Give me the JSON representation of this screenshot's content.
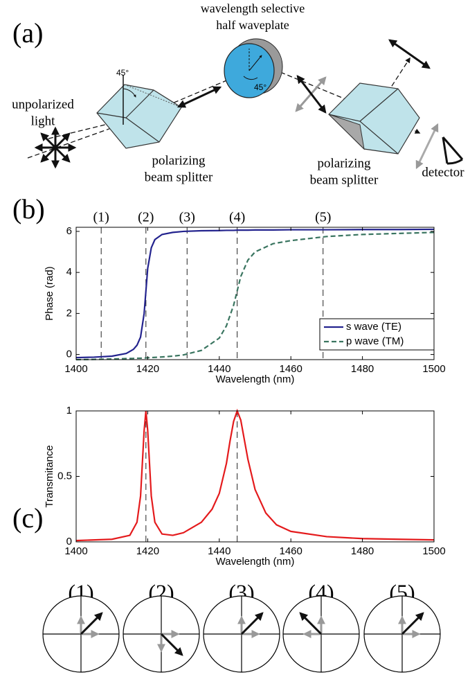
{
  "panels": [
    "(a)",
    "(b)",
    "(c)"
  ],
  "diagram": {
    "waveplate_label": [
      "wavelength selective",
      "half waveplate"
    ],
    "source_label": [
      "unpolarized",
      "light"
    ],
    "splitter_labels": [
      [
        "polarizing",
        "beam splitter"
      ],
      [
        "polarizing",
        "beam splitter"
      ]
    ],
    "angle_labels": [
      "45°",
      "45°"
    ],
    "detector_label": "detector"
  },
  "polarization_states": [
    "(1)",
    "(2)",
    "(3)",
    "(4)",
    "(5)"
  ],
  "chart_data": [
    {
      "type": "line",
      "xlabel": "Wavelength (nm)",
      "ylabel": "Phase (rad)",
      "x": [
        1400,
        1405,
        1410,
        1414,
        1416,
        1417,
        1418,
        1419,
        1419.5,
        1420,
        1421,
        1422,
        1424,
        1427,
        1430,
        1435,
        1440,
        1442,
        1444,
        1445,
        1446,
        1448,
        1450,
        1455,
        1460,
        1470,
        1480,
        1490,
        1500
      ],
      "series": [
        {
          "name": "s wave (TE)",
          "color": "#23238e",
          "style": "solid",
          "values": [
            -0.15,
            -0.13,
            -0.08,
            0.05,
            0.25,
            0.45,
            0.85,
            2.0,
            3.1,
            4.2,
            5.2,
            5.6,
            5.85,
            5.95,
            6.0,
            6.03,
            6.04,
            6.05,
            6.05,
            6.06,
            6.06,
            6.06,
            6.07,
            6.07,
            6.08,
            6.08,
            6.09,
            6.09,
            6.1
          ]
        },
        {
          "name": "p wave (TM)",
          "color": "#3a7560",
          "style": "dashed",
          "values": [
            -0.25,
            -0.24,
            -0.22,
            -0.2,
            -0.19,
            -0.18,
            -0.18,
            -0.17,
            -0.17,
            -0.16,
            -0.15,
            -0.14,
            -0.12,
            -0.08,
            -0.02,
            0.2,
            0.8,
            1.4,
            2.4,
            3.1,
            3.8,
            4.6,
            5.0,
            5.4,
            5.55,
            5.75,
            5.85,
            5.9,
            5.95
          ]
        }
      ],
      "xlim": [
        1400,
        1500
      ],
      "ylim": [
        -0.25,
        6.2
      ],
      "xticks": [
        1400,
        1420,
        1440,
        1460,
        1480,
        1500
      ],
      "yticks": [
        0,
        2,
        4,
        6
      ],
      "vlines": [
        1407,
        1419.5,
        1431,
        1445,
        1469
      ],
      "vline_labels": [
        "(1)",
        "(2)",
        "(3)",
        "(4)",
        "(5)"
      ],
      "legend": "lower right"
    },
    {
      "type": "line",
      "xlabel": "Wavelength (nm)",
      "ylabel": "Transmitance",
      "x": [
        1400,
        1410,
        1415,
        1417,
        1418,
        1419,
        1419.5,
        1420,
        1421,
        1422,
        1424,
        1427,
        1430,
        1435,
        1438,
        1440,
        1442,
        1443,
        1444,
        1445,
        1446,
        1447,
        1448,
        1450,
        1453,
        1456,
        1460,
        1470,
        1480,
        1490,
        1500
      ],
      "values": [
        0.01,
        0.02,
        0.05,
        0.15,
        0.35,
        0.85,
        1.0,
        0.85,
        0.35,
        0.15,
        0.06,
        0.05,
        0.07,
        0.15,
        0.25,
        0.37,
        0.6,
        0.77,
        0.92,
        1.0,
        0.93,
        0.78,
        0.63,
        0.4,
        0.22,
        0.13,
        0.08,
        0.04,
        0.025,
        0.02,
        0.015
      ],
      "color": "#e41a1c",
      "xlim": [
        1400,
        1500
      ],
      "ylim": [
        0,
        1
      ],
      "xticks": [
        1400,
        1420,
        1440,
        1460,
        1480,
        1500
      ],
      "yticks": [
        0,
        0.5,
        1
      ],
      "vlines": [
        1419.5,
        1445
      ]
    }
  ]
}
